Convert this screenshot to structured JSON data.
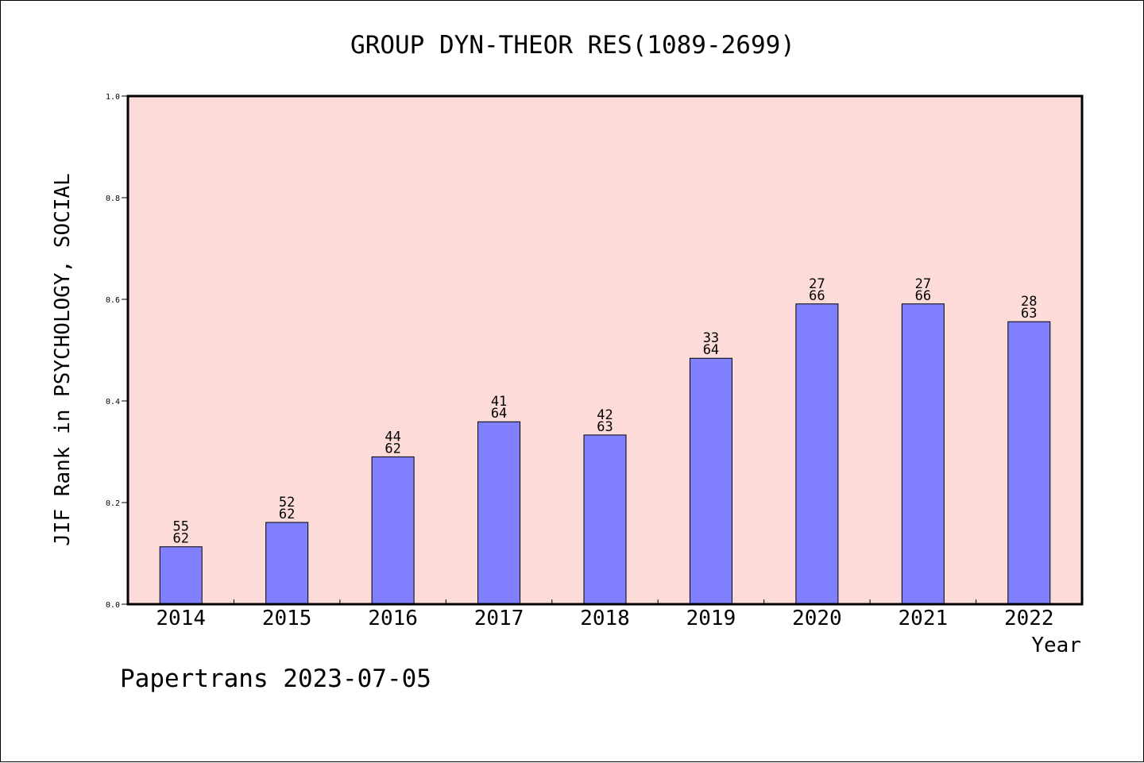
{
  "chart_data": {
    "type": "bar",
    "title": "GROUP DYN-THEOR RES(1089-2699)",
    "xlabel": "Year",
    "ylabel": "JIF Rank in PSYCHOLOGY, SOCIAL",
    "ylim": [
      0.0,
      1.0
    ],
    "yticks": [
      "0.0",
      "0.2",
      "0.4",
      "0.6",
      "0.8",
      "1.0"
    ],
    "categories": [
      "2014",
      "2015",
      "2016",
      "2017",
      "2018",
      "2019",
      "2020",
      "2021",
      "2022"
    ],
    "values": [
      0.113,
      0.161,
      0.29,
      0.359,
      0.333,
      0.484,
      0.591,
      0.591,
      0.556
    ],
    "rank": [
      "55",
      "52",
      "44",
      "41",
      "42",
      "33",
      "27",
      "27",
      "28"
    ],
    "total": [
      "62",
      "62",
      "62",
      "64",
      "63",
      "64",
      "66",
      "66",
      "63"
    ],
    "grid": false,
    "bar_color": "#8080ff",
    "plot_background": "#fddbd8"
  },
  "footer": "Papertrans 2023-07-05"
}
